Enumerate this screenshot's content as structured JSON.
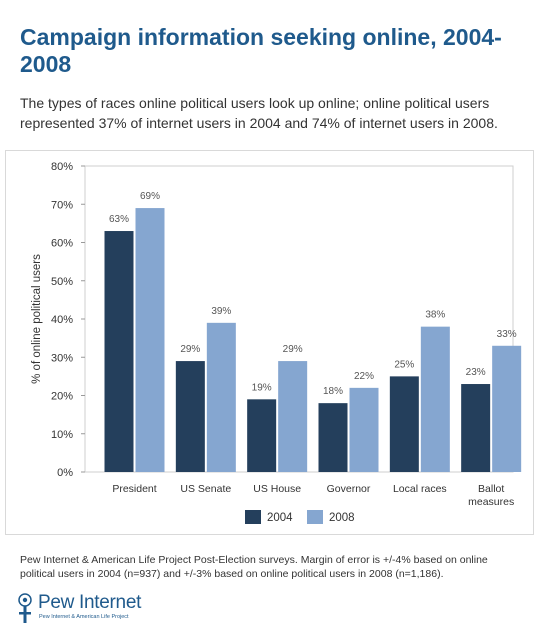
{
  "title": "Campaign information seeking online, 2004-2008",
  "subtitle": "The types of races online political users look up online; online political users represented 37% of internet users in 2004 and 74% of internet users in 2008.",
  "footnote": "Pew Internet & American Life Project Post-Election surveys. Margin of error is +/-4% based on online political users in 2004 (n=937) and +/-3% based on online political users in 2008 (n=1,186).",
  "logo": {
    "name": "Pew Internet",
    "tagline": "Pew Internet & American Life Project"
  },
  "colors": {
    "2004": "#243f5c",
    "2008": "#85a6d0",
    "title": "#1f5a8c"
  },
  "chart_data": {
    "type": "bar",
    "categories": [
      "President",
      "US Senate",
      "US House",
      "Governor",
      "Local races",
      "Ballot measures"
    ],
    "series": [
      {
        "name": "2004",
        "values": [
          63,
          29,
          19,
          18,
          25,
          23
        ],
        "labels": [
          "63%",
          "29%",
          "19%",
          "18%",
          "25%",
          "23%"
        ]
      },
      {
        "name": "2008",
        "values": [
          69,
          39,
          29,
          22,
          38,
          33
        ],
        "labels": [
          "69%",
          "39%",
          "29%",
          "22%",
          "38%",
          "33%"
        ]
      }
    ],
    "ylabel": "% of online political users",
    "xlabel": "",
    "ylim": [
      0,
      80
    ],
    "yticks": [
      0,
      10,
      20,
      30,
      40,
      50,
      60,
      70,
      80
    ],
    "ytick_labels": [
      "0%",
      "10%",
      "20%",
      "30%",
      "40%",
      "50%",
      "60%",
      "70%",
      "80%"
    ],
    "grid": false,
    "legend_position": "bottom"
  }
}
